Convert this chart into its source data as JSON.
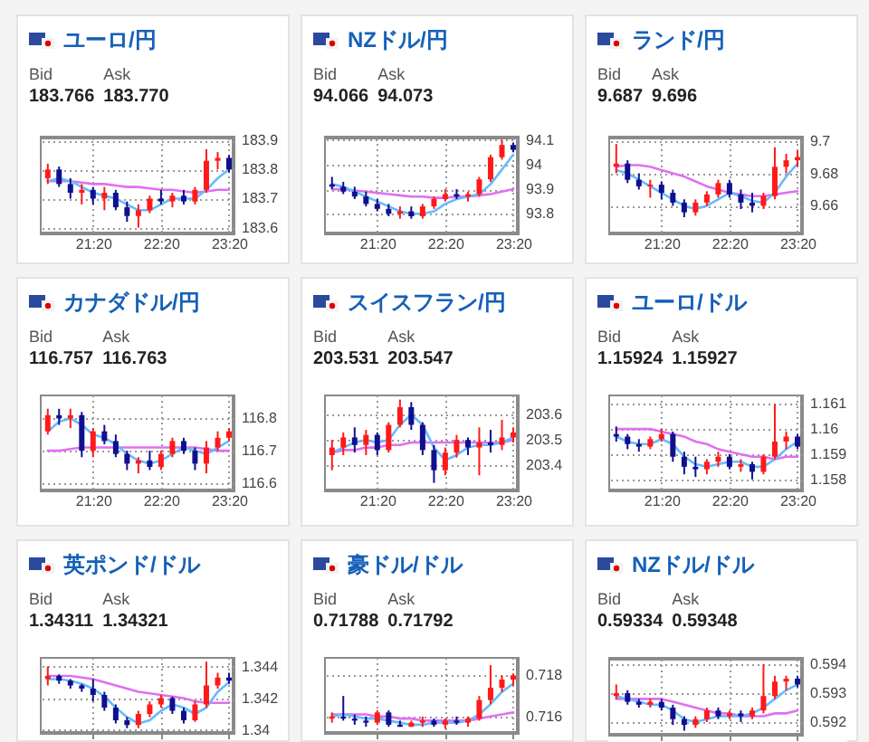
{
  "chart_data": [
    {
      "type": "candlestick",
      "title": "ユーロ/円",
      "annotations": [
        "Bid",
        "Ask",
        "183.766",
        "183.770"
      ],
      "grid": true,
      "x": [
        20.667,
        20.833,
        21,
        21.167,
        21.333,
        21.5,
        21.667,
        21.833,
        22,
        22.167,
        22.333,
        22.5,
        22.667,
        22.833,
        23,
        23.167,
        23.333
      ],
      "xlim": [
        20.55,
        23.4
      ],
      "xticks": [
        {
          "value": 21.333,
          "label": "21:20"
        },
        {
          "value": 22.333,
          "label": "22:20"
        },
        {
          "value": 23.333,
          "label": "23:20"
        }
      ],
      "ylim": [
        183.58,
        183.91
      ],
      "yticks": [
        183.6,
        183.7,
        183.8,
        183.9
      ],
      "ohlc": [
        [
          183.77,
          183.82,
          183.75,
          183.8
        ],
        [
          183.8,
          183.81,
          183.74,
          183.75
        ],
        [
          183.75,
          183.77,
          183.7,
          183.72
        ],
        [
          183.72,
          183.75,
          183.68,
          183.73
        ],
        [
          183.73,
          183.74,
          183.68,
          183.7
        ],
        [
          183.7,
          183.74,
          183.66,
          183.72
        ],
        [
          183.72,
          183.73,
          183.66,
          183.67
        ],
        [
          183.67,
          183.69,
          183.62,
          183.64
        ],
        [
          183.64,
          183.68,
          183.6,
          183.66
        ],
        [
          183.66,
          183.71,
          183.65,
          183.7
        ],
        [
          183.7,
          183.73,
          183.68,
          183.69
        ],
        [
          183.69,
          183.72,
          183.67,
          183.71
        ],
        [
          183.71,
          183.73,
          183.68,
          183.69
        ],
        [
          183.69,
          183.74,
          183.68,
          183.73
        ],
        [
          183.73,
          183.87,
          183.72,
          183.83
        ],
        [
          183.83,
          183.86,
          183.8,
          183.84
        ],
        [
          183.84,
          183.85,
          183.79,
          183.8
        ]
      ],
      "series": [
        {
          "type": "line",
          "color": "#e070f0",
          "values": [
            183.76,
            183.76,
            183.76,
            183.755,
            183.75,
            183.75,
            183.745,
            183.74,
            183.74,
            183.735,
            183.73,
            183.73,
            183.725,
            183.72,
            183.725,
            183.73,
            183.73
          ]
        },
        {
          "type": "line",
          "color": "#66bbff",
          "values": [
            183.76,
            183.77,
            183.76,
            183.74,
            183.72,
            183.71,
            183.7,
            183.68,
            183.66,
            183.66,
            183.68,
            183.7,
            183.7,
            183.7,
            183.73,
            183.77,
            183.8
          ]
        }
      ]
    },
    {
      "type": "candlestick",
      "title": "NZドル/円",
      "annotations": [
        "Bid",
        "Ask",
        "94.066",
        "94.073"
      ],
      "grid": true,
      "x": [
        20.667,
        20.833,
        21,
        21.167,
        21.333,
        21.5,
        21.667,
        21.833,
        22,
        22.167,
        22.333,
        22.5,
        22.667,
        22.833,
        23,
        23.167,
        23.333
      ],
      "xlim": [
        20.55,
        23.4
      ],
      "xticks": [
        {
          "value": 21.333,
          "label": "21:20"
        },
        {
          "value": 22.333,
          "label": "22:20"
        },
        {
          "value": 23.333,
          "label": "23:20"
        }
      ],
      "ylim": [
        93.72,
        94.11
      ],
      "yticks": [
        93.8,
        93.9,
        94,
        94.1
      ],
      "ohlc": [
        [
          93.92,
          93.95,
          93.9,
          93.91
        ],
        [
          93.91,
          93.93,
          93.88,
          93.89
        ],
        [
          93.89,
          93.91,
          93.86,
          93.87
        ],
        [
          93.87,
          93.89,
          93.83,
          93.84
        ],
        [
          93.84,
          93.86,
          93.81,
          93.82
        ],
        [
          93.82,
          93.84,
          93.79,
          93.8
        ],
        [
          93.8,
          93.83,
          93.78,
          93.81
        ],
        [
          93.81,
          93.83,
          93.78,
          93.79
        ],
        [
          93.79,
          93.84,
          93.78,
          93.83
        ],
        [
          93.83,
          93.87,
          93.82,
          93.86
        ],
        [
          93.86,
          93.9,
          93.85,
          93.88
        ],
        [
          93.88,
          93.9,
          93.86,
          93.87
        ],
        [
          93.87,
          93.89,
          93.85,
          93.88
        ],
        [
          93.88,
          93.95,
          93.87,
          93.94
        ],
        [
          93.94,
          94.04,
          93.93,
          94.03
        ],
        [
          94.03,
          94.1,
          94.02,
          94.08
        ],
        [
          94.08,
          94.09,
          94.05,
          94.06
        ]
      ],
      "series": [
        {
          "type": "line",
          "color": "#e070f0",
          "values": [
            93.9,
            93.9,
            93.895,
            93.89,
            93.885,
            93.88,
            93.875,
            93.87,
            93.87,
            93.865,
            93.865,
            93.87,
            93.87,
            93.875,
            93.88,
            93.89,
            93.9
          ]
        },
        {
          "type": "line",
          "color": "#66bbff",
          "values": [
            93.92,
            93.91,
            93.89,
            93.87,
            93.85,
            93.83,
            93.81,
            93.8,
            93.8,
            93.81,
            93.84,
            93.86,
            93.87,
            93.88,
            93.92,
            93.98,
            94.04
          ]
        }
      ]
    },
    {
      "type": "candlestick",
      "title": "ランド/円",
      "annotations": [
        "Bid",
        "Ask",
        "9.687",
        "9.696"
      ],
      "grid": true,
      "x": [
        20.667,
        20.833,
        21,
        21.167,
        21.333,
        21.5,
        21.667,
        21.833,
        22,
        22.167,
        22.333,
        22.5,
        22.667,
        22.833,
        23,
        23.167,
        23.333
      ],
      "xlim": [
        20.55,
        23.4
      ],
      "xticks": [
        {
          "value": 21.333,
          "label": "21:20"
        },
        {
          "value": 22.333,
          "label": "22:20"
        },
        {
          "value": 23.333,
          "label": "23:20"
        }
      ],
      "ylim": [
        9.643,
        9.702
      ],
      "yticks": [
        9.66,
        9.68,
        9.7
      ],
      "ohlc": [
        [
          9.684,
          9.698,
          9.68,
          9.686
        ],
        [
          9.686,
          9.688,
          9.674,
          9.676
        ],
        [
          9.676,
          9.68,
          9.67,
          9.672
        ],
        [
          9.672,
          9.676,
          9.665,
          9.673
        ],
        [
          9.673,
          9.675,
          9.664,
          9.668
        ],
        [
          9.668,
          9.67,
          9.66,
          9.662
        ],
        [
          9.662,
          9.664,
          9.653,
          9.656
        ],
        [
          9.656,
          9.664,
          9.654,
          9.662
        ],
        [
          9.662,
          9.669,
          9.66,
          9.667
        ],
        [
          9.667,
          9.676,
          9.665,
          9.674
        ],
        [
          9.674,
          9.676,
          9.665,
          9.667
        ],
        [
          9.667,
          9.67,
          9.658,
          9.662
        ],
        [
          9.662,
          9.668,
          9.656,
          9.66
        ],
        [
          9.66,
          9.668,
          9.658,
          9.666
        ],
        [
          9.666,
          9.696,
          9.664,
          9.684
        ],
        [
          9.684,
          9.692,
          9.68,
          9.688
        ],
        [
          9.688,
          9.694,
          9.684,
          9.69
        ]
      ],
      "series": [
        {
          "type": "line",
          "color": "#e070f0",
          "values": [
            9.684,
            9.685,
            9.685,
            9.684,
            9.682,
            9.68,
            9.678,
            9.675,
            9.672,
            9.67,
            9.668,
            9.667,
            9.666,
            9.666,
            9.667,
            9.668,
            9.669
          ]
        },
        {
          "type": "line",
          "color": "#66bbff",
          "values": [
            9.682,
            9.68,
            9.676,
            9.672,
            9.668,
            9.664,
            9.66,
            9.658,
            9.66,
            9.664,
            9.668,
            9.666,
            9.663,
            9.662,
            9.668,
            9.678,
            9.686
          ]
        }
      ]
    },
    {
      "type": "candlestick",
      "title": "カナダドル/円",
      "annotations": [
        "Bid",
        "Ask",
        "116.757",
        "116.763"
      ],
      "grid": true,
      "x": [
        20.667,
        20.833,
        21,
        21.167,
        21.333,
        21.5,
        21.667,
        21.833,
        22,
        22.167,
        22.333,
        22.5,
        22.667,
        22.833,
        23,
        23.167,
        23.333
      ],
      "xlim": [
        20.55,
        23.4
      ],
      "xticks": [
        {
          "value": 21.333,
          "label": "21:20"
        },
        {
          "value": 22.333,
          "label": "22:20"
        },
        {
          "value": 23.333,
          "label": "23:20"
        }
      ],
      "ylim": [
        116.577,
        116.874
      ],
      "yticks": [
        116.6,
        116.7,
        116.8
      ],
      "ohlc": [
        [
          116.76,
          116.83,
          116.75,
          116.81
        ],
        [
          116.81,
          116.83,
          116.78,
          116.8
        ],
        [
          116.8,
          116.83,
          116.77,
          116.81
        ],
        [
          116.81,
          116.82,
          116.68,
          116.7
        ],
        [
          116.7,
          116.77,
          116.68,
          116.76
        ],
        [
          116.76,
          116.78,
          116.72,
          116.73
        ],
        [
          116.73,
          116.75,
          116.68,
          116.69
        ],
        [
          116.69,
          116.7,
          116.64,
          116.66
        ],
        [
          116.66,
          116.68,
          116.63,
          116.67
        ],
        [
          116.67,
          116.7,
          116.64,
          116.65
        ],
        [
          116.65,
          116.7,
          116.64,
          116.69
        ],
        [
          116.69,
          116.74,
          116.68,
          116.73
        ],
        [
          116.73,
          116.74,
          116.69,
          116.7
        ],
        [
          116.7,
          116.71,
          116.64,
          116.66
        ],
        [
          116.66,
          116.73,
          116.63,
          116.71
        ],
        [
          116.71,
          116.76,
          116.7,
          116.74
        ],
        [
          116.74,
          116.77,
          116.73,
          116.76
        ]
      ],
      "series": [
        {
          "type": "line",
          "color": "#e070f0",
          "values": [
            116.7,
            116.7,
            116.705,
            116.71,
            116.71,
            116.71,
            116.71,
            116.71,
            116.71,
            116.71,
            116.71,
            116.71,
            116.71,
            116.71,
            116.705,
            116.7,
            116.7
          ]
        },
        {
          "type": "line",
          "color": "#66bbff",
          "values": [
            116.76,
            116.79,
            116.8,
            116.78,
            116.75,
            116.74,
            116.72,
            116.69,
            116.67,
            116.66,
            116.67,
            116.69,
            116.71,
            116.7,
            116.69,
            116.71,
            116.73
          ]
        }
      ]
    },
    {
      "type": "candlestick",
      "title": "スイスフラン/円",
      "annotations": [
        "Bid",
        "Ask",
        "203.531",
        "203.547"
      ],
      "grid": true,
      "x": [
        20.667,
        20.833,
        21,
        21.167,
        21.333,
        21.5,
        21.667,
        21.833,
        22,
        22.167,
        22.333,
        22.5,
        22.667,
        22.833,
        23,
        23.167,
        23.333
      ],
      "xlim": [
        20.55,
        23.4
      ],
      "xticks": [
        {
          "value": 21.333,
          "label": "21:20"
        },
        {
          "value": 22.333,
          "label": "22:20"
        },
        {
          "value": 23.333,
          "label": "23:20"
        }
      ],
      "ylim": [
        203.3,
        203.68
      ],
      "yticks": [
        203.4,
        203.5,
        203.6
      ],
      "ohlc": [
        [
          203.44,
          203.5,
          203.38,
          203.47
        ],
        [
          203.47,
          203.53,
          203.44,
          203.51
        ],
        [
          203.51,
          203.55,
          203.45,
          203.48
        ],
        [
          203.48,
          203.54,
          203.44,
          203.52
        ],
        [
          203.52,
          203.53,
          203.44,
          203.46
        ],
        [
          203.46,
          203.57,
          203.45,
          203.56
        ],
        [
          203.56,
          203.66,
          203.55,
          203.63
        ],
        [
          203.63,
          203.65,
          203.54,
          203.56
        ],
        [
          203.56,
          203.57,
          203.44,
          203.46
        ],
        [
          203.46,
          203.48,
          203.33,
          203.38
        ],
        [
          203.38,
          203.47,
          203.36,
          203.45
        ],
        [
          203.45,
          203.52,
          203.43,
          203.5
        ],
        [
          203.5,
          203.51,
          203.44,
          203.47
        ],
        [
          203.47,
          203.55,
          203.36,
          203.49
        ],
        [
          203.49,
          203.54,
          203.45,
          203.48
        ],
        [
          203.48,
          203.58,
          203.46,
          203.51
        ],
        [
          203.51,
          203.55,
          203.49,
          203.53
        ]
      ],
      "series": [
        {
          "type": "line",
          "color": "#e070f0",
          "values": [
            203.45,
            203.46,
            203.46,
            203.47,
            203.47,
            203.48,
            203.48,
            203.49,
            203.49,
            203.49,
            203.49,
            203.49,
            203.49,
            203.49,
            203.49,
            203.49,
            203.5
          ]
        },
        {
          "type": "line",
          "color": "#66bbff",
          "values": [
            203.45,
            203.47,
            203.49,
            203.5,
            203.49,
            203.5,
            203.56,
            203.6,
            203.56,
            203.47,
            203.42,
            203.44,
            203.47,
            203.48,
            203.48,
            203.49,
            203.51
          ]
        }
      ]
    },
    {
      "type": "candlestick",
      "title": "ユーロ/ドル",
      "annotations": [
        "Bid",
        "Ask",
        "1.15924",
        "1.15927"
      ],
      "grid": true,
      "x": [
        20.667,
        20.833,
        21,
        21.167,
        21.333,
        21.5,
        21.667,
        21.833,
        22,
        22.167,
        22.333,
        22.5,
        22.667,
        22.833,
        23,
        23.167,
        23.333
      ],
      "xlim": [
        20.55,
        23.4
      ],
      "xticks": [
        {
          "value": 21.333,
          "label": "21:20"
        },
        {
          "value": 22.333,
          "label": "22:20"
        },
        {
          "value": 23.333,
          "label": "23:20"
        }
      ],
      "ylim": [
        1.15756,
        1.16137
      ],
      "yticks": [
        1.158,
        1.159,
        1.16,
        1.161
      ],
      "ohlc": [
        [
          1.1598,
          1.1601,
          1.1595,
          1.1597
        ],
        [
          1.1597,
          1.1598,
          1.1592,
          1.1594
        ],
        [
          1.1594,
          1.1596,
          1.1591,
          1.1593
        ],
        [
          1.1593,
          1.1597,
          1.1592,
          1.1596
        ],
        [
          1.1596,
          1.16,
          1.1595,
          1.1598
        ],
        [
          1.1598,
          1.1599,
          1.1587,
          1.1589
        ],
        [
          1.1589,
          1.1591,
          1.1582,
          1.1585
        ],
        [
          1.1585,
          1.1589,
          1.1581,
          1.1584
        ],
        [
          1.1584,
          1.1588,
          1.1582,
          1.1587
        ],
        [
          1.1587,
          1.1591,
          1.1585,
          1.1589
        ],
        [
          1.1589,
          1.159,
          1.1584,
          1.1585
        ],
        [
          1.1585,
          1.1588,
          1.1583,
          1.1586
        ],
        [
          1.1586,
          1.1587,
          1.158,
          1.1583
        ],
        [
          1.1583,
          1.159,
          1.1582,
          1.1589
        ],
        [
          1.1589,
          1.161,
          1.1588,
          1.1595
        ],
        [
          1.1595,
          1.1599,
          1.1592,
          1.1597
        ],
        [
          1.1597,
          1.1598,
          1.1592,
          1.1593
        ]
      ],
      "series": [
        {
          "type": "line",
          "color": "#e070f0",
          "values": [
            1.16,
            1.16,
            1.16,
            1.16,
            1.1599,
            1.1598,
            1.1597,
            1.1595,
            1.1594,
            1.1592,
            1.1591,
            1.159,
            1.1589,
            1.1589,
            1.1588,
            1.1589,
            1.1589
          ]
        },
        {
          "type": "line",
          "color": "#66bbff",
          "values": [
            1.1597,
            1.1595,
            1.1594,
            1.1594,
            1.1596,
            1.1594,
            1.1589,
            1.1586,
            1.1585,
            1.1586,
            1.1587,
            1.1587,
            1.1585,
            1.1585,
            1.1588,
            1.1592,
            1.1595
          ]
        }
      ]
    },
    {
      "type": "candlestick",
      "title": "英ポンド/ドル",
      "annotations": [
        "Bid",
        "Ask",
        "1.34311",
        "1.34321"
      ],
      "grid": true,
      "tick_labels": "y",
      "x": [
        20.667,
        20.833,
        21,
        21.167,
        21.333,
        21.5,
        21.667,
        21.833,
        22,
        22.167,
        22.333,
        22.5,
        22.667,
        22.833,
        23,
        23.167,
        23.333
      ],
      "xlim": [
        20.55,
        23.4
      ],
      "xticks": [
        {
          "value": 21.333,
          "label": null
        },
        {
          "value": 22.333,
          "label": null
        },
        {
          "value": 23.333,
          "label": null
        }
      ],
      "ylim": [
        1.3398,
        1.3446
      ],
      "yticks": [
        1.34,
        1.342,
        1.344
      ],
      "ohlc": [
        [
          1.3432,
          1.344,
          1.3428,
          1.3434
        ],
        [
          1.3434,
          1.3435,
          1.3429,
          1.3431
        ],
        [
          1.3431,
          1.3432,
          1.3426,
          1.3428
        ],
        [
          1.3428,
          1.3429,
          1.3424,
          1.3426
        ],
        [
          1.3426,
          1.3432,
          1.3418,
          1.3422
        ],
        [
          1.3422,
          1.3424,
          1.3412,
          1.3414
        ],
        [
          1.3414,
          1.3416,
          1.3404,
          1.3406
        ],
        [
          1.3406,
          1.3408,
          1.3401,
          1.3403
        ],
        [
          1.3403,
          1.3412,
          1.3401,
          1.341
        ],
        [
          1.341,
          1.3418,
          1.3408,
          1.3416
        ],
        [
          1.3416,
          1.3422,
          1.3414,
          1.342
        ],
        [
          1.342,
          1.3421,
          1.341,
          1.3412
        ],
        [
          1.3412,
          1.3414,
          1.3404,
          1.3406
        ],
        [
          1.3406,
          1.3418,
          1.3405,
          1.3416
        ],
        [
          1.3416,
          1.3443,
          1.3414,
          1.3428
        ],
        [
          1.3428,
          1.3436,
          1.3426,
          1.3433
        ],
        [
          1.3433,
          1.3436,
          1.3429,
          1.3431
        ]
      ],
      "series": [
        {
          "type": "line",
          "color": "#e070f0",
          "values": [
            1.3434,
            1.3434,
            1.3434,
            1.3433,
            1.3432,
            1.343,
            1.3428,
            1.3426,
            1.3424,
            1.3423,
            1.3422,
            1.3421,
            1.342,
            1.3418,
            1.3417,
            1.3417,
            1.3417
          ]
        },
        {
          "type": "line",
          "color": "#66bbff",
          "values": [
            1.3432,
            1.3432,
            1.3431,
            1.3429,
            1.3426,
            1.3421,
            1.3414,
            1.3408,
            1.3404,
            1.3406,
            1.3412,
            1.3416,
            1.3414,
            1.341,
            1.3414,
            1.3424,
            1.343
          ]
        }
      ]
    },
    {
      "type": "candlestick",
      "title": "豪ドル/ドル",
      "annotations": [
        "Bid",
        "Ask",
        "0.71788",
        "0.71792"
      ],
      "grid": true,
      "tick_labels": "y",
      "x": [
        20.667,
        20.833,
        21,
        21.167,
        21.333,
        21.5,
        21.667,
        21.833,
        22,
        22.167,
        22.333,
        22.5,
        22.667,
        22.833,
        23,
        23.167,
        23.333
      ],
      "xlim": [
        20.55,
        23.4
      ],
      "xticks": [
        {
          "value": 21.333,
          "label": null
        },
        {
          "value": 22.333,
          "label": null
        },
        {
          "value": 23.333,
          "label": null
        }
      ],
      "ylim": [
        0.7152,
        0.7189
      ],
      "yticks": [
        0.716,
        0.718
      ],
      "ohlc": [
        [
          0.7159,
          0.7162,
          0.7157,
          0.716
        ],
        [
          0.716,
          0.717,
          0.7158,
          0.7159
        ],
        [
          0.7159,
          0.7161,
          0.7156,
          0.7158
        ],
        [
          0.7158,
          0.716,
          0.7155,
          0.7157
        ],
        [
          0.7157,
          0.7163,
          0.7156,
          0.7162
        ],
        [
          0.7162,
          0.7163,
          0.7155,
          0.7156
        ],
        [
          0.7156,
          0.7158,
          0.7155,
          0.7155
        ],
        [
          0.7155,
          0.7158,
          0.7155,
          0.7157
        ],
        [
          0.7157,
          0.716,
          0.7155,
          0.7158
        ],
        [
          0.7158,
          0.7159,
          0.7155,
          0.7156
        ],
        [
          0.7156,
          0.7159,
          0.7154,
          0.7158
        ],
        [
          0.7158,
          0.716,
          0.7156,
          0.7157
        ],
        [
          0.7157,
          0.716,
          0.7155,
          0.7159
        ],
        [
          0.7159,
          0.717,
          0.7158,
          0.7168
        ],
        [
          0.7168,
          0.7185,
          0.7166,
          0.7174
        ],
        [
          0.7174,
          0.718,
          0.7172,
          0.7178
        ],
        [
          0.7178,
          0.7181,
          0.7175,
          0.718
        ]
      ],
      "series": [
        {
          "type": "line",
          "color": "#e070f0",
          "values": [
            0.7161,
            0.7161,
            0.7161,
            0.7161,
            0.716,
            0.716,
            0.7159,
            0.7159,
            0.7158,
            0.7158,
            0.7158,
            0.7158,
            0.7158,
            0.7159,
            0.716,
            0.7161,
            0.7162
          ]
        },
        {
          "type": "line",
          "color": "#66bbff",
          "values": [
            0.716,
            0.7161,
            0.716,
            0.7159,
            0.7159,
            0.7158,
            0.7157,
            0.7156,
            0.7156,
            0.7157,
            0.7157,
            0.7157,
            0.7158,
            0.7161,
            0.7166,
            0.7172,
            0.7176
          ]
        }
      ]
    },
    {
      "type": "candlestick",
      "title": "NZドル/ドル",
      "annotations": [
        "Bid",
        "Ask",
        "0.59334",
        "0.59348"
      ],
      "grid": true,
      "tick_labels": "y",
      "x": [
        20.667,
        20.833,
        21,
        21.167,
        21.333,
        21.5,
        21.667,
        21.833,
        22,
        22.167,
        22.333,
        22.5,
        22.667,
        22.833,
        23,
        23.167,
        23.333
      ],
      "xlim": [
        20.55,
        23.4
      ],
      "xticks": [
        {
          "value": 21.333,
          "label": null
        },
        {
          "value": 22.333,
          "label": null
        },
        {
          "value": 23.333,
          "label": null
        }
      ],
      "ylim": [
        0.59156,
        0.59419
      ],
      "yticks": [
        0.592,
        0.593,
        0.594
      ],
      "ohlc": [
        [
          0.5929,
          0.5933,
          0.5928,
          0.593
        ],
        [
          0.593,
          0.5931,
          0.5926,
          0.5927
        ],
        [
          0.5927,
          0.5928,
          0.5925,
          0.5926
        ],
        [
          0.5926,
          0.5928,
          0.5925,
          0.5927
        ],
        [
          0.5927,
          0.5928,
          0.5924,
          0.5925
        ],
        [
          0.5925,
          0.5926,
          0.5919,
          0.5921
        ],
        [
          0.5921,
          0.5922,
          0.5917,
          0.5919
        ],
        [
          0.5919,
          0.5922,
          0.5918,
          0.5921
        ],
        [
          0.5921,
          0.5925,
          0.592,
          0.5924
        ],
        [
          0.5924,
          0.5925,
          0.5921,
          0.5922
        ],
        [
          0.5922,
          0.5924,
          0.5921,
          0.5923
        ],
        [
          0.5923,
          0.5924,
          0.592,
          0.5922
        ],
        [
          0.5922,
          0.5925,
          0.5921,
          0.5924
        ],
        [
          0.5924,
          0.594,
          0.5923,
          0.5929
        ],
        [
          0.5929,
          0.5936,
          0.5928,
          0.5934
        ],
        [
          0.5934,
          0.5936,
          0.5931,
          0.5935
        ],
        [
          0.5935,
          0.5936,
          0.5932,
          0.5933
        ]
      ],
      "series": [
        {
          "type": "line",
          "color": "#e070f0",
          "values": [
            0.5928,
            0.5928,
            0.5928,
            0.5928,
            0.5928,
            0.5927,
            0.5926,
            0.5925,
            0.5924,
            0.5923,
            0.5923,
            0.5922,
            0.5922,
            0.5922,
            0.5923,
            0.5923,
            0.5924
          ]
        },
        {
          "type": "line",
          "color": "#66bbff",
          "values": [
            0.5929,
            0.5928,
            0.5927,
            0.5926,
            0.5926,
            0.5924,
            0.5921,
            0.592,
            0.5921,
            0.5922,
            0.5922,
            0.5922,
            0.5923,
            0.5925,
            0.5928,
            0.5931,
            0.5933
          ]
        }
      ]
    }
  ]
}
